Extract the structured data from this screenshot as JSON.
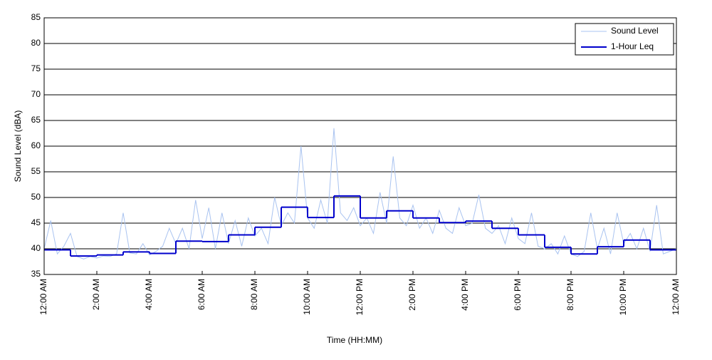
{
  "chart_data": {
    "type": "line",
    "xlabel": "Time (HH:MM)",
    "ylabel": "Sound Level (dBA)",
    "xlim": [
      0,
      24
    ],
    "xticks": [
      {
        "value": 0,
        "label": "12:00 AM"
      },
      {
        "value": 2,
        "label": "2:00 AM"
      },
      {
        "value": 4,
        "label": "4:00 AM"
      },
      {
        "value": 6,
        "label": "6:00 AM"
      },
      {
        "value": 8,
        "label": "8:00 AM"
      },
      {
        "value": 10,
        "label": "10:00 AM"
      },
      {
        "value": 12,
        "label": "12:00 PM"
      },
      {
        "value": 14,
        "label": "2:00 PM"
      },
      {
        "value": 16,
        "label": "4:00 PM"
      },
      {
        "value": 18,
        "label": "6:00 PM"
      },
      {
        "value": 20,
        "label": "8:00 PM"
      },
      {
        "value": 22,
        "label": "10:00 PM"
      },
      {
        "value": 24,
        "label": "12:00 AM"
      }
    ],
    "ylim": [
      35,
      85
    ],
    "yticks": [
      35,
      40,
      45,
      50,
      55,
      60,
      65,
      70,
      75,
      80,
      85
    ],
    "grid": true,
    "legend": "upper right",
    "series": [
      {
        "name": "Sound Level",
        "color": "#a9c3f0",
        "step": false,
        "x": [
          0,
          0.25,
          0.5,
          0.75,
          1,
          1.25,
          1.5,
          1.75,
          2,
          2.25,
          2.5,
          2.75,
          3,
          3.25,
          3.5,
          3.75,
          4,
          4.25,
          4.5,
          4.75,
          5,
          5.25,
          5.5,
          5.75,
          6,
          6.25,
          6.5,
          6.75,
          7,
          7.25,
          7.5,
          7.75,
          8,
          8.25,
          8.5,
          8.75,
          9,
          9.25,
          9.5,
          9.75,
          10,
          10.25,
          10.5,
          10.75,
          11,
          11.25,
          11.5,
          11.75,
          12,
          12.25,
          12.5,
          12.75,
          13,
          13.25,
          13.5,
          13.75,
          14,
          14.25,
          14.5,
          14.75,
          15,
          15.25,
          15.5,
          15.75,
          16,
          16.25,
          16.5,
          16.75,
          17,
          17.25,
          17.5,
          17.75,
          18,
          18.25,
          18.5,
          18.75,
          19,
          19.25,
          19.5,
          19.75,
          20,
          20.25,
          20.5,
          20.75,
          21,
          21.25,
          21.5,
          21.75,
          22,
          22.25,
          22.5,
          22.75,
          23,
          23.25,
          23.5,
          23.75,
          24
        ],
        "values": [
          40,
          45.5,
          39,
          40.5,
          43,
          38.5,
          38,
          38.5,
          38.2,
          38.6,
          38.5,
          39,
          47,
          39.2,
          39,
          41,
          38.8,
          39.5,
          40.5,
          44,
          41,
          44,
          40,
          49.5,
          42,
          48,
          40,
          47,
          41,
          45.5,
          40.5,
          46,
          42.5,
          44,
          41,
          50,
          44.5,
          47,
          45,
          60,
          46,
          44,
          49.5,
          45,
          63.5,
          47,
          45.5,
          48,
          44.5,
          46,
          43,
          51,
          45,
          58,
          46,
          44.5,
          48.5,
          44,
          46,
          43,
          47.5,
          44,
          43,
          48,
          44.5,
          45,
          50.5,
          44,
          43,
          44.5,
          41,
          46,
          42,
          41,
          47,
          40.5,
          40,
          41,
          39,
          42.5,
          39,
          38.5,
          39.5,
          47,
          40,
          44,
          39,
          47,
          41,
          43,
          40,
          44,
          39.5,
          48.5,
          39,
          39.5,
          40
        ]
      },
      {
        "name": "1-Hour Leq",
        "color": "#0000cc",
        "step": true,
        "x": [
          0,
          1,
          2,
          3,
          4,
          5,
          6,
          7,
          8,
          9,
          10,
          11,
          12,
          13,
          14,
          15,
          16,
          17,
          18,
          19,
          20,
          21,
          22,
          23
        ],
        "values": [
          39.8,
          38.6,
          38.8,
          39.4,
          39.1,
          41.5,
          41.4,
          42.7,
          44.2,
          48.1,
          46.1,
          50.3,
          46.0,
          47.4,
          46.0,
          45.1,
          45.4,
          44.0,
          42.7,
          40.3,
          39.0,
          40.4,
          41.7,
          39.8
        ]
      }
    ]
  }
}
